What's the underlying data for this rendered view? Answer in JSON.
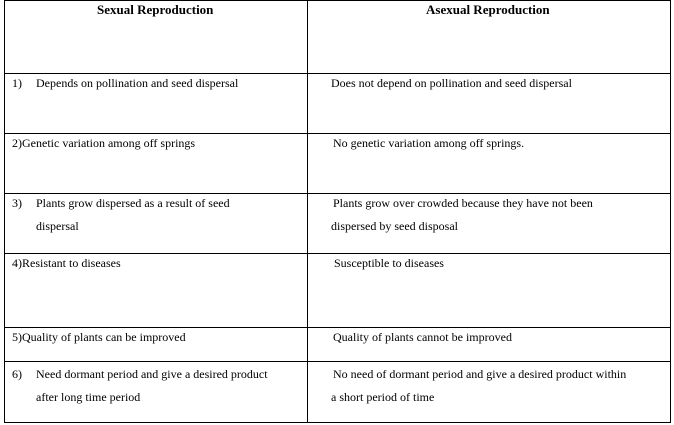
{
  "headers": {
    "left": "Sexual Reproduction",
    "right": "Asexual Reproduction"
  },
  "rows": [
    {
      "num": "1)",
      "left_lines": [
        "Depends on pollination and seed dispersal"
      ],
      "right_lines": [
        "Does not depend on pollination and seed dispersal"
      ]
    },
    {
      "num": "2)",
      "left_lines": [
        "Genetic variation among off springs"
      ],
      "right_lines": [
        "No  genetic  variation among off springs."
      ]
    },
    {
      "num": "3)",
      "left_lines": [
        "Plants grow  dispersed as a result    of seed",
        "dispersal"
      ],
      "right_lines": [
        "Plants grow  over crowded because they have not been",
        "dispersed by seed disposal"
      ]
    },
    {
      "num": "4)",
      "left_lines": [
        "Resistant to diseases"
      ],
      "right_lines": [
        "Susceptible to diseases"
      ]
    },
    {
      "num": "5)",
      "left_lines": [
        "Quality of plants can be improved"
      ],
      "right_lines": [
        "Quality  of plants cannot be improved"
      ]
    },
    {
      "num": "6)",
      "left_lines": [
        "Need dormant period and give  a desired product",
        "after long time period"
      ],
      "right_lines": [
        "No  need of dormant period and give  a desired product within",
        "a short period  of time"
      ]
    }
  ]
}
